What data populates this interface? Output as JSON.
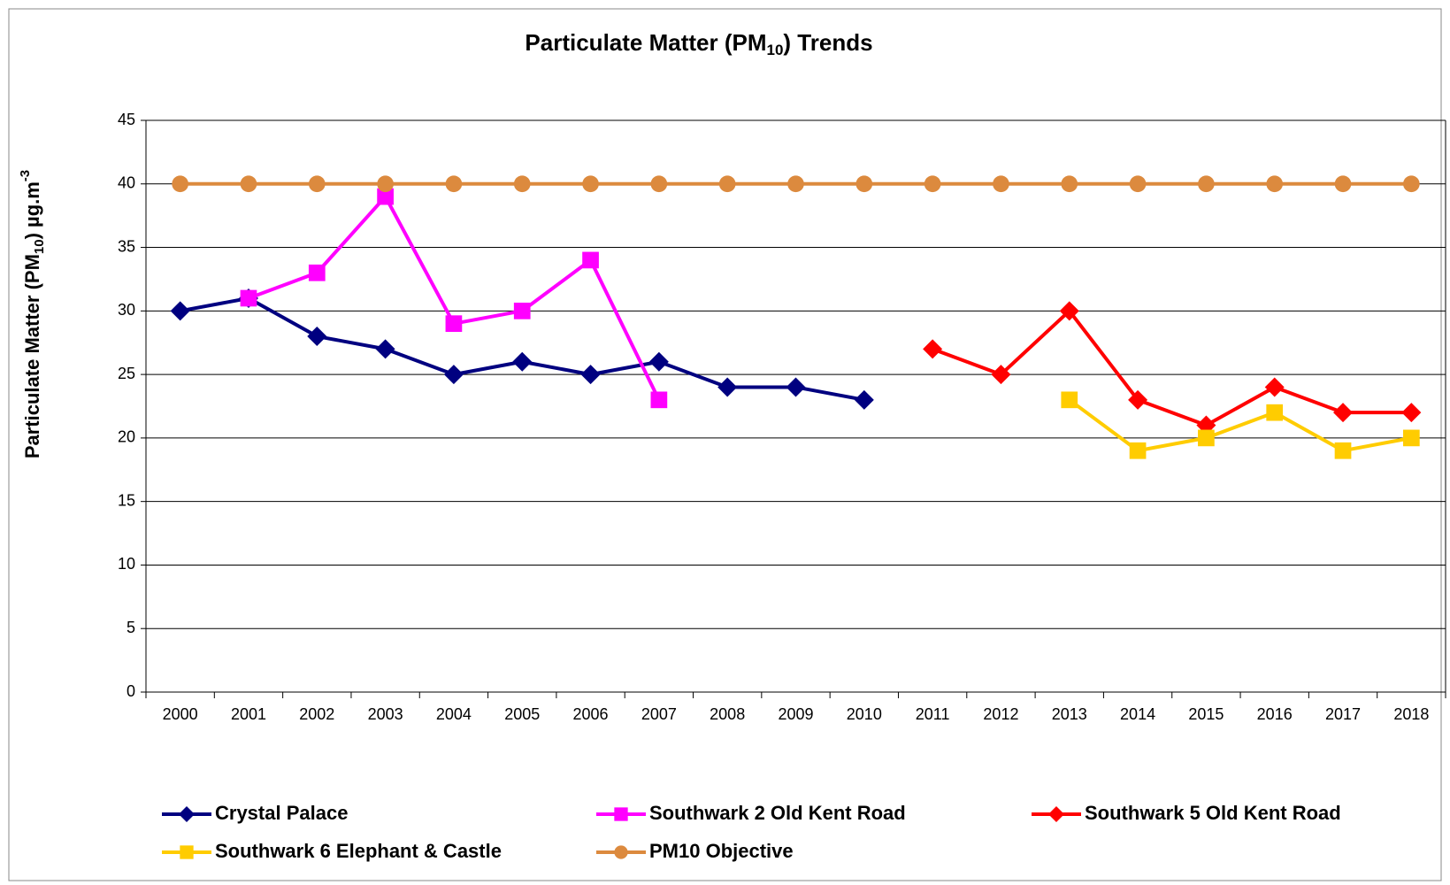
{
  "chart_data": {
    "type": "line",
    "title": [
      "Particulate Matter (PM",
      "10",
      ") Trends"
    ],
    "y_label": [
      "Particulate Matter (PM",
      "10",
      ") µg.m",
      "-3"
    ],
    "categories": [
      "2000",
      "2001",
      "2002",
      "2003",
      "2004",
      "2005",
      "2006",
      "2007",
      "2008",
      "2009",
      "2010",
      "2011",
      "2012",
      "2013",
      "2014",
      "2015",
      "2016",
      "2017",
      "2018"
    ],
    "series": [
      {
        "name": "Crystal Palace",
        "color": "#000080",
        "marker": "diamond",
        "values": [
          30,
          31,
          28,
          27,
          25,
          26,
          25,
          26,
          24,
          24,
          23,
          null,
          null,
          null,
          null,
          null,
          null,
          null,
          null
        ]
      },
      {
        "name": "Southwark 2 Old Kent Road",
        "color": "#ff00ff",
        "marker": "square",
        "values": [
          null,
          31,
          33,
          39,
          29,
          30,
          34,
          23,
          null,
          null,
          null,
          null,
          null,
          null,
          null,
          null,
          null,
          null,
          null
        ]
      },
      {
        "name": "Southwark 5 Old Kent Road",
        "color": "#ff0000",
        "marker": "diamond",
        "values": [
          null,
          null,
          null,
          null,
          null,
          null,
          null,
          null,
          null,
          null,
          null,
          27,
          25,
          30,
          23,
          21,
          24,
          22,
          22
        ]
      },
      {
        "name": "Southwark 6 Elephant & Castle",
        "color": "#ffcc00",
        "marker": "square",
        "values": [
          null,
          null,
          null,
          null,
          null,
          null,
          null,
          null,
          null,
          null,
          null,
          null,
          null,
          23,
          19,
          20,
          22,
          19,
          20
        ]
      },
      {
        "name": "PM10 Objective",
        "color": "#dc8a3e",
        "marker": "circle",
        "values": [
          40,
          40,
          40,
          40,
          40,
          40,
          40,
          40,
          40,
          40,
          40,
          40,
          40,
          40,
          40,
          40,
          40,
          40,
          40
        ]
      }
    ],
    "ylim": [
      0,
      45
    ],
    "yticks": [
      0,
      5,
      10,
      15,
      20,
      25,
      30,
      35,
      40,
      45
    ],
    "grid": true
  }
}
